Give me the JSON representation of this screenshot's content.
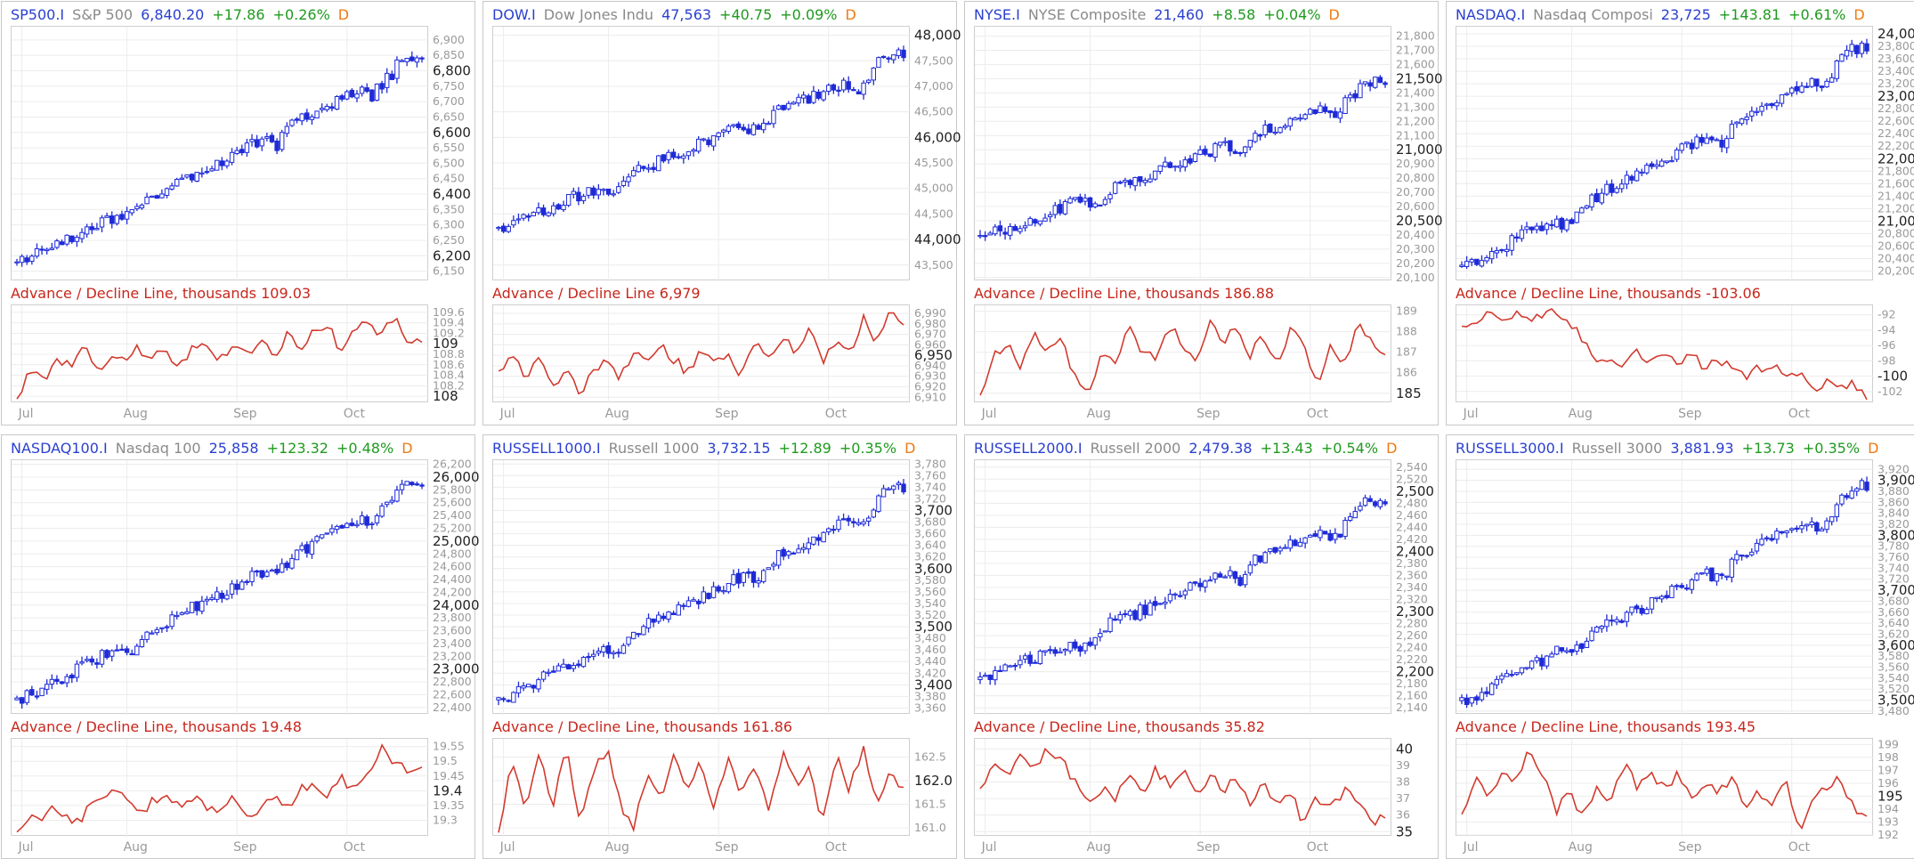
{
  "colors": {
    "symbol": "#2a3fcf",
    "name": "#8a8a8a",
    "change_up": "#1f9a1f",
    "period": "#ee7a12",
    "candle": "#1e2bd6",
    "ad_line": "#d23a2e",
    "grid": "#ececec"
  },
  "months": [
    "Jul",
    "Aug",
    "Sep",
    "Oct"
  ],
  "panels": [
    {
      "symbol": "SP500.I",
      "name": "S&P 500",
      "last": "6,840.20",
      "change": "+17.86",
      "change_pct": "+0.26%",
      "period": "D",
      "ad_title": "Advance / Decline Line, thousands 109.03",
      "chart_data": {
        "type": "candlestick+line",
        "price": {
          "start": 6175,
          "end": 6840,
          "ylim": [
            6120,
            6940
          ],
          "major_ticks": [
            6200,
            6400,
            6600,
            6800
          ],
          "minor_ticks": [
            6150,
            6250,
            6300,
            6350,
            6450,
            6500,
            6550,
            6650,
            6700,
            6750,
            6850,
            6900
          ],
          "tick_format": "comma0"
        },
        "ad": {
          "points": [
            107.95,
            108.5,
            108.3,
            108.75,
            108.55,
            108.9,
            108.4,
            108.8,
            108.6,
            108.95,
            108.7,
            108.85,
            108.5,
            108.9,
            109.05,
            108.7,
            108.95,
            108.8,
            109.1,
            108.7,
            109.2,
            108.9,
            109.3,
            109.35,
            108.85,
            109.25,
            109.5,
            109.1,
            109.6,
            109.0,
            109.03
          ],
          "ylim": [
            107.9,
            109.7
          ],
          "major_ticks": [
            108,
            109
          ],
          "minor_ticks": [
            108.2,
            108.4,
            108.6,
            108.8,
            109.2,
            109.4,
            109.6
          ],
          "tick_format": "d1min"
        }
      }
    },
    {
      "symbol": "DOW.I",
      "name": "Dow Jones Indu",
      "last": "47,563",
      "change": "+40.75",
      "change_pct": "+0.09%",
      "period": "D",
      "ad_title": "Advance / Decline Line 6,979",
      "chart_data": {
        "type": "candlestick+line",
        "price": {
          "start": 44200,
          "end": 47563,
          "ylim": [
            43200,
            48150
          ],
          "major_ticks": [
            44000,
            46000,
            48000
          ],
          "minor_ticks": [
            43500,
            44500,
            45000,
            45500,
            46500,
            47000,
            47500
          ],
          "tick_format": "comma0"
        },
        "ad": {
          "points": [
            6935,
            6950,
            6928,
            6945,
            6920,
            6940,
            6912,
            6935,
            6950,
            6930,
            6955,
            6940,
            6960,
            6945,
            6935,
            6955,
            6940,
            6950,
            6930,
            6960,
            6945,
            6970,
            6955,
            6975,
            6940,
            6965,
            6950,
            6985,
            6960,
            6990,
            6979
          ],
          "ylim": [
            6906,
            6996
          ],
          "major_ticks": [
            6950
          ],
          "minor_ticks": [
            6910,
            6920,
            6930,
            6940,
            6960,
            6970,
            6980,
            6990
          ],
          "tick_format": "comma0"
        }
      }
    },
    {
      "symbol": "NYSE.I",
      "name": "NYSE Composite",
      "last": "21,460",
      "change": "+8.58",
      "change_pct": "+0.04%",
      "period": "D",
      "ad_title": "Advance / Decline Line, thousands 186.88",
      "chart_data": {
        "type": "candlestick+line",
        "price": {
          "start": 20380,
          "end": 21460,
          "ylim": [
            20080,
            21860
          ],
          "major_ticks": [
            20500,
            21000,
            21500
          ],
          "minor_ticks": [
            20100,
            20200,
            20300,
            20400,
            20600,
            20700,
            20800,
            20900,
            21100,
            21200,
            21300,
            21400,
            21600,
            21700,
            21800
          ],
          "tick_format": "comma0"
        },
        "ad": {
          "points": [
            184.9,
            186.8,
            187.6,
            186.3,
            188.0,
            186.9,
            187.5,
            185.8,
            184.8,
            187.2,
            186.3,
            188.1,
            187.0,
            186.6,
            188.3,
            187.4,
            186.7,
            188.5,
            187.6,
            188.1,
            186.9,
            187.8,
            186.5,
            188.0,
            187.3,
            185.2,
            187.4,
            186.4,
            188.5,
            187.7,
            186.88
          ],
          "ylim": [
            184.6,
            189.2
          ],
          "major_ticks": [
            185
          ],
          "minor_ticks": [
            186,
            187,
            188,
            189
          ],
          "tick_format": "int"
        }
      }
    },
    {
      "symbol": "NASDAQ.I",
      "name": "Nasdaq Composi",
      "last": "23,725",
      "change": "+143.81",
      "change_pct": "+0.61%",
      "period": "D",
      "ad_title": "Advance / Decline Line, thousands -103.06",
      "chart_data": {
        "type": "candlestick+line",
        "price": {
          "start": 20250,
          "end": 23725,
          "ylim": [
            20050,
            24100
          ],
          "major_ticks": [
            21000,
            22000,
            23000,
            24000
          ],
          "minor_ticks": [
            20200,
            20400,
            20600,
            20800,
            21200,
            21400,
            21600,
            21800,
            22200,
            22400,
            22600,
            22800,
            23200,
            23400,
            23600,
            23800
          ],
          "tick_format": "comma0"
        },
        "ad": {
          "points": [
            -93.5,
            -92.5,
            -91.8,
            -92.9,
            -91.6,
            -93.0,
            -92.1,
            -91.3,
            -92.6,
            -95.8,
            -97.9,
            -97.2,
            -98.3,
            -96.9,
            -98.0,
            -97.6,
            -98.6,
            -97.4,
            -98.9,
            -98.1,
            -98.7,
            -99.8,
            -99.2,
            -98.6,
            -100.3,
            -99.6,
            -101.6,
            -100.7,
            -102.1,
            -101.0,
            -103.06
          ],
          "ylim": [
            -103.3,
            -91.0
          ],
          "major_ticks": [
            -100
          ],
          "minor_ticks": [
            -92,
            -94,
            -96,
            -98,
            -102
          ],
          "tick_format": "int"
        }
      }
    },
    {
      "symbol": "NASDAQ100.I",
      "name": "Nasdaq 100",
      "last": "25,858",
      "change": "+123.32",
      "change_pct": "+0.48%",
      "period": "D",
      "ad_title": "Advance / Decline Line, thousands 19.48",
      "chart_data": {
        "type": "candlestick+line",
        "price": {
          "start": 22500,
          "end": 25858,
          "ylim": [
            22300,
            26250
          ],
          "major_ticks": [
            23000,
            24000,
            25000,
            26000
          ],
          "minor_ticks": [
            22400,
            22600,
            22800,
            23200,
            23400,
            23600,
            23800,
            24200,
            24400,
            24600,
            24800,
            25200,
            25400,
            25600,
            25800,
            26200
          ],
          "tick_format": "comma0"
        },
        "ad": {
          "points": [
            19.26,
            19.33,
            19.3,
            19.35,
            19.28,
            19.32,
            19.36,
            19.41,
            19.38,
            19.32,
            19.36,
            19.4,
            19.34,
            19.38,
            19.35,
            19.33,
            19.37,
            19.31,
            19.34,
            19.37,
            19.35,
            19.4,
            19.43,
            19.37,
            19.45,
            19.39,
            19.47,
            19.55,
            19.5,
            19.46,
            19.48
          ],
          "ylim": [
            19.25,
            19.57
          ],
          "major_ticks": [
            19.4
          ],
          "minor_ticks": [
            19.3,
            19.35,
            19.45,
            19.5,
            19.55
          ],
          "tick_format": "d2min"
        }
      }
    },
    {
      "symbol": "RUSSELL1000.I",
      "name": "Russell 1000",
      "last": "3,732.15",
      "change": "+12.89",
      "change_pct": "+0.35%",
      "period": "D",
      "ad_title": "Advance / Decline Line, thousands 161.86",
      "chart_data": {
        "type": "candlestick+line",
        "price": {
          "start": 3372,
          "end": 3732,
          "ylim": [
            3350,
            3785
          ],
          "major_ticks": [
            3400,
            3500,
            3600,
            3700
          ],
          "minor_ticks": [
            3360,
            3380,
            3420,
            3440,
            3460,
            3480,
            3520,
            3540,
            3560,
            3580,
            3620,
            3640,
            3660,
            3680,
            3720,
            3740,
            3760,
            3780
          ],
          "tick_format": "comma0"
        },
        "ad": {
          "points": [
            160.9,
            162.4,
            161.5,
            162.6,
            161.3,
            162.8,
            161.2,
            162.1,
            162.7,
            161.5,
            160.95,
            162.2,
            161.6,
            162.6,
            161.8,
            162.4,
            161.4,
            162.5,
            161.7,
            162.3,
            161.3,
            162.6,
            161.9,
            162.2,
            161.1,
            162.5,
            161.8,
            162.75,
            161.6,
            162.1,
            161.86
          ],
          "ylim": [
            160.85,
            162.85
          ],
          "major_ticks": [
            162
          ],
          "minor_ticks": [
            161.0,
            161.5,
            162.5
          ],
          "tick_format": "d1"
        }
      }
    },
    {
      "symbol": "RUSSELL2000.I",
      "name": "Russell 2000",
      "last": "2,479.38",
      "change": "+13.43",
      "change_pct": "+0.54%",
      "period": "D",
      "ad_title": "Advance / Decline Line, thousands 35.82",
      "chart_data": {
        "type": "candlestick+line",
        "price": {
          "start": 2185,
          "end": 2479,
          "ylim": [
            2130,
            2550
          ],
          "major_ticks": [
            2200,
            2300,
            2400,
            2500
          ],
          "minor_ticks": [
            2140,
            2160,
            2180,
            2220,
            2240,
            2260,
            2280,
            2320,
            2340,
            2360,
            2380,
            2420,
            2440,
            2460,
            2480,
            2520,
            2540
          ],
          "tick_format": "comma0"
        },
        "ad": {
          "points": [
            37.6,
            39.0,
            38.4,
            39.5,
            38.7,
            40.2,
            39.3,
            38.0,
            36.8,
            37.6,
            37.1,
            38.5,
            37.4,
            38.8,
            37.9,
            38.6,
            37.3,
            38.4,
            37.6,
            38.2,
            36.9,
            37.8,
            36.8,
            37.4,
            35.4,
            37.1,
            36.3,
            37.7,
            36.7,
            35.7,
            35.82
          ],
          "ylim": [
            34.8,
            40.5
          ],
          "major_ticks": [
            35,
            40
          ],
          "minor_ticks": [
            36,
            37,
            38,
            39
          ],
          "tick_format": "int"
        }
      }
    },
    {
      "symbol": "RUSSELL3000.I",
      "name": "Russell 3000",
      "last": "3,881.93",
      "change": "+13.73",
      "change_pct": "+0.35%",
      "period": "D",
      "ad_title": "Advance / Decline Line, thousands 193.45",
      "chart_data": {
        "type": "candlestick+line",
        "price": {
          "start": 3497,
          "end": 3882,
          "ylim": [
            3475,
            3935
          ],
          "major_ticks": [
            3500,
            3600,
            3700,
            3800,
            3900
          ],
          "minor_ticks": [
            3480,
            3520,
            3540,
            3560,
            3580,
            3620,
            3640,
            3660,
            3680,
            3720,
            3740,
            3760,
            3780,
            3820,
            3840,
            3860,
            3880,
            3920
          ],
          "tick_format": "comma0"
        },
        "ad": {
          "points": [
            193.6,
            196.2,
            195.0,
            197.1,
            196.0,
            198.5,
            196.8,
            193.9,
            195.1,
            193.7,
            195.6,
            194.4,
            197.4,
            195.8,
            196.9,
            195.4,
            196.6,
            194.8,
            196.2,
            195.1,
            196.7,
            193.8,
            195.3,
            194.2,
            196.0,
            192.4,
            194.6,
            195.5,
            196.6,
            194.0,
            193.45
          ],
          "ylim": [
            192.0,
            199.3
          ],
          "major_ticks": [
            195
          ],
          "minor_ticks": [
            192,
            193,
            194,
            196,
            197,
            198,
            199
          ],
          "tick_format": "int"
        }
      }
    }
  ]
}
